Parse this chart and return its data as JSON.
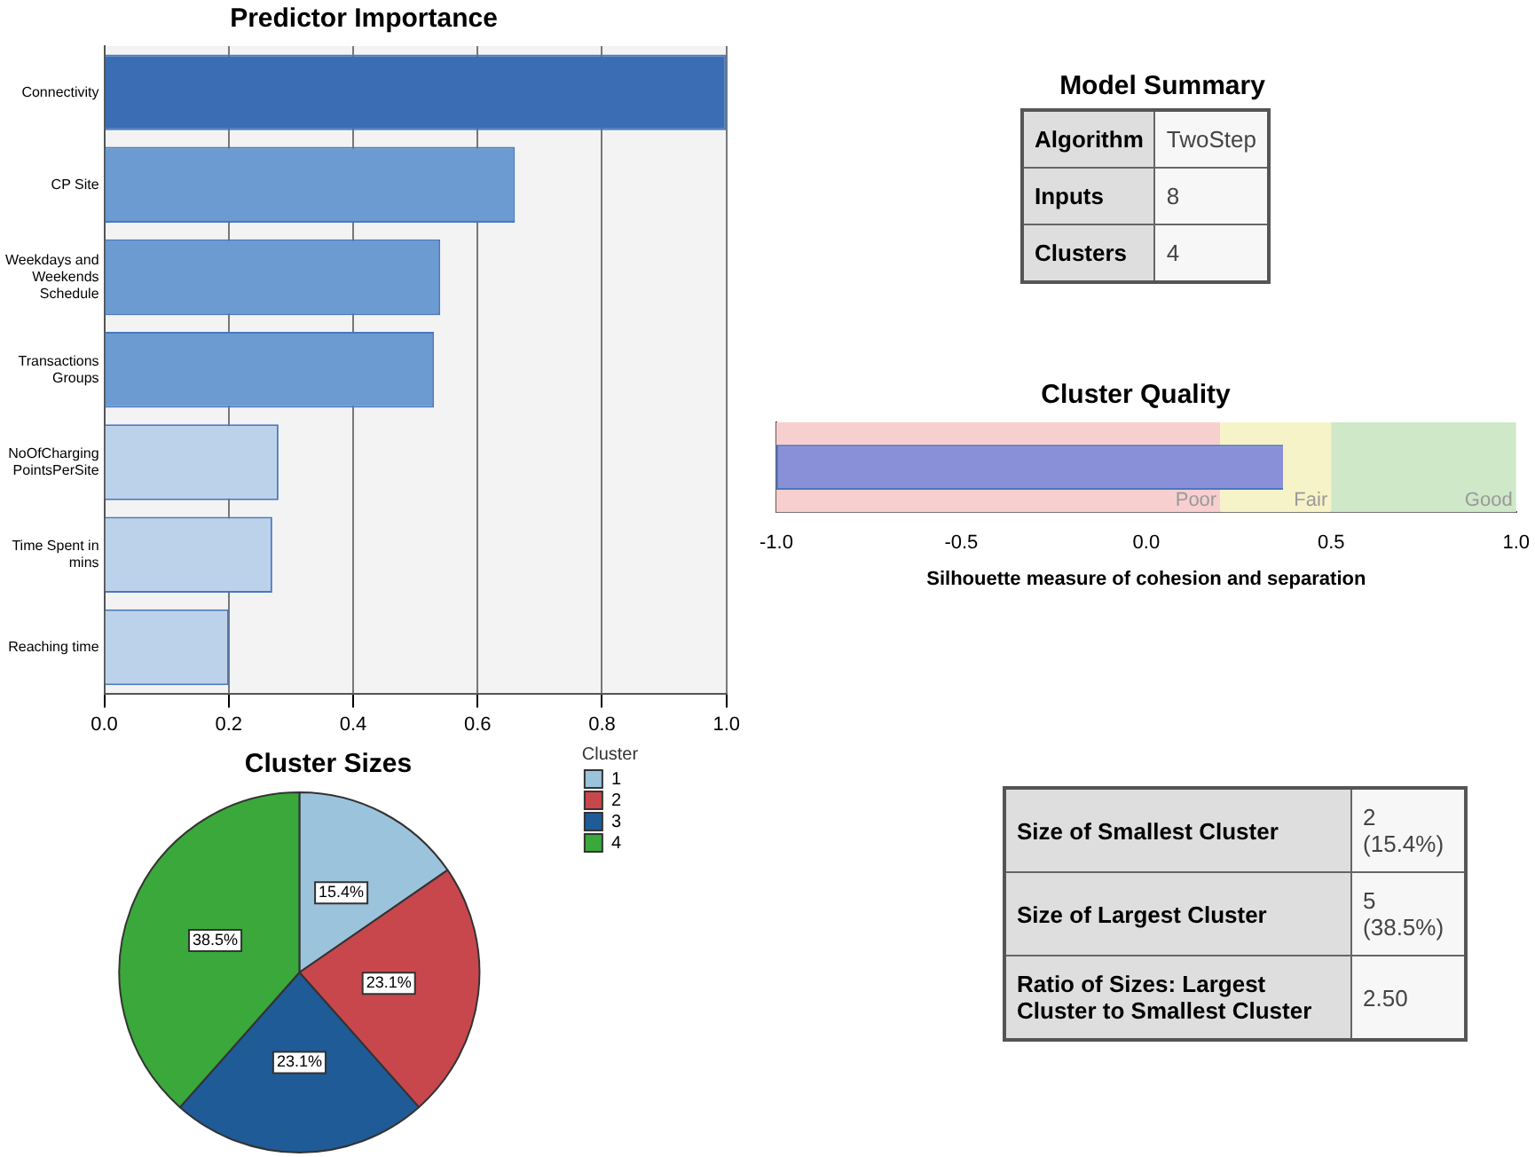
{
  "chart_data": [
    {
      "type": "bar",
      "orientation": "horizontal",
      "title": "Predictor Importance",
      "categories": [
        "Connectivity",
        "CP Site",
        "Weekdays and Weekends Schedule",
        "Transactions Groups",
        "NoOfCharging PointsPerSite",
        "Time Spent in mins",
        "Reaching time"
      ],
      "values": [
        1.0,
        0.66,
        0.54,
        0.53,
        0.28,
        0.27,
        0.2
      ],
      "colors": [
        "#3a6db4",
        "#6b9bd0",
        "#6b9bd0",
        "#6b9bd0",
        "#bcd2ea",
        "#bcd2ea",
        "#bcd2ea"
      ],
      "xlim": [
        0,
        1
      ],
      "xticks": [
        {
          "value": 0,
          "label": "0.0"
        },
        0.2,
        0.4,
        0.6,
        0.8,
        {
          "value": 1,
          "label": "1.0"
        }
      ],
      "grid": "x"
    },
    {
      "type": "other",
      "title": "Model Summary",
      "annotations": [
        "Algorithm",
        "TwoStep",
        "Inputs",
        "8",
        "Clusters",
        "4"
      ]
    },
    {
      "type": "bar",
      "orientation": "horizontal",
      "title": "Cluster Quality",
      "xlabel": "Silhouette measure of cohesion and separation",
      "categories": [
        null
      ],
      "base": [
        -1
      ],
      "values": [
        1.37
      ],
      "colors": [
        "#8a90d8"
      ],
      "xlim": [
        -1,
        1
      ],
      "xticks": [
        {
          "value": -1,
          "label": "-1.0"
        },
        {
          "value": -0.5,
          "label": "-0.5"
        },
        {
          "value": 0,
          "label": "0.0"
        },
        {
          "value": 0.5,
          "label": "0.5"
        },
        {
          "value": 1,
          "label": "1.0"
        }
      ],
      "bands": [
        {
          "axis": "x",
          "from": -1,
          "to": 0.2,
          "label": "Poor",
          "color": "#f8cfcf"
        },
        {
          "axis": "x",
          "from": 0.2,
          "to": 0.5,
          "label": "Fair",
          "color": "#f7f3c9"
        },
        {
          "axis": "x",
          "from": 0.5,
          "to": 1,
          "label": "Good",
          "color": "#cfe8c8"
        }
      ]
    },
    {
      "type": "pie",
      "title": "Cluster Sizes",
      "legend_title": "Cluster",
      "legend": "right",
      "categories": [
        "1",
        "2",
        "3",
        "4"
      ],
      "values": [
        15.4,
        23.1,
        23.1,
        38.5
      ],
      "colors": [
        "#9cc3dc",
        "#c8474d",
        "#1f5b97",
        "#3aa83a"
      ],
      "value_labels": [
        "15.4%",
        "23.1%",
        "23.1%",
        "38.5%"
      ]
    },
    {
      "type": "other",
      "annotations": [
        "Size of Smallest Cluster",
        "2 (15.4%)",
        "Size of Largest Cluster",
        "5 (38.5%)",
        "Ratio of Sizes: Largest Cluster to Smallest Cluster",
        "2.50"
      ]
    }
  ]
}
